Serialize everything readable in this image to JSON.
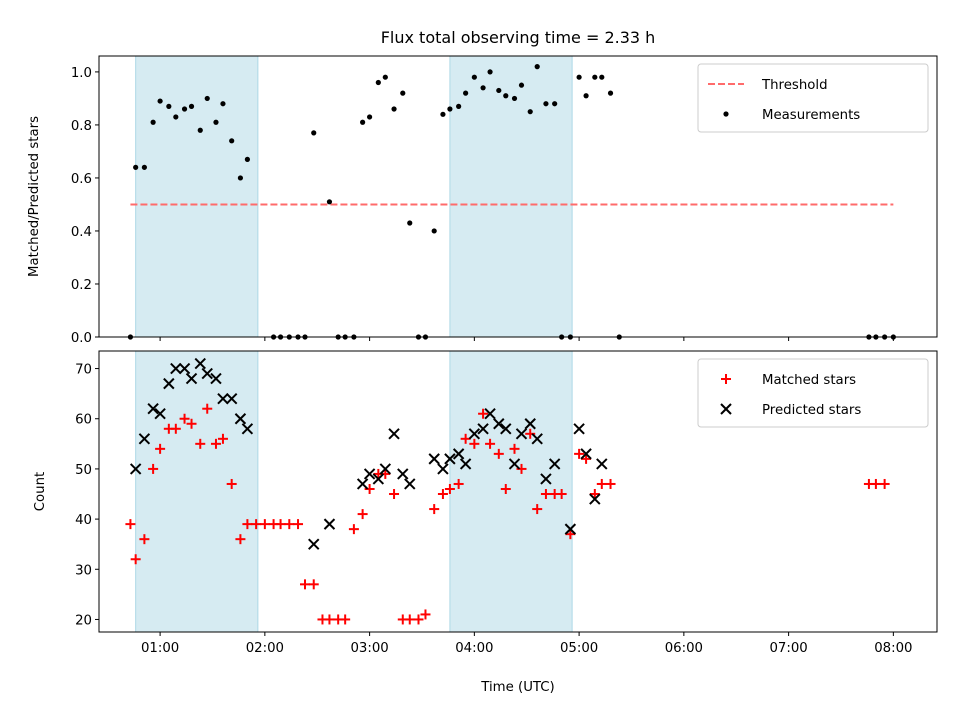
{
  "chart_data": {
    "title": "Flux total observing time = 2.33 h",
    "xlabel": "Time (UTC)",
    "x_type": "time",
    "x_range": [
      "00:25",
      "08:25"
    ],
    "x_ticks": [
      "01:00",
      "02:00",
      "03:00",
      "04:00",
      "05:00",
      "06:00",
      "07:00",
      "08:00"
    ],
    "shaded_intervals": [
      [
        "00:46",
        "01:56"
      ],
      [
        "03:46",
        "04:56"
      ]
    ],
    "shade_color": "#add8e6",
    "panels": [
      {
        "type": "scatter",
        "ylabel": "Matched/Predicted stars",
        "ylim": [
          0,
          1.06
        ],
        "yticks": [
          "0.0",
          "0.2",
          "0.4",
          "0.6",
          "0.8",
          "1.0"
        ],
        "legend_position": "top-right",
        "threshold": {
          "name": "Threshold",
          "value": 0.5,
          "x_start": "00:43",
          "x_end": "08:00",
          "color": "#ff6b6b",
          "style": "dashed"
        },
        "series": [
          {
            "name": "Measurements",
            "color": "#000000",
            "marker": "dot",
            "points": [
              [
                "00:43",
                0.0
              ],
              [
                "00:46",
                0.64
              ],
              [
                "00:51",
                0.64
              ],
              [
                "00:56",
                0.81
              ],
              [
                "01:00",
                0.89
              ],
              [
                "01:05",
                0.87
              ],
              [
                "01:09",
                0.83
              ],
              [
                "01:14",
                0.86
              ],
              [
                "01:18",
                0.87
              ],
              [
                "01:23",
                0.78
              ],
              [
                "01:27",
                0.9
              ],
              [
                "01:32",
                0.81
              ],
              [
                "01:36",
                0.88
              ],
              [
                "01:41",
                0.74
              ],
              [
                "01:46",
                0.6
              ],
              [
                "01:50",
                0.67
              ],
              [
                "02:05",
                0.0
              ],
              [
                "02:09",
                0.0
              ],
              [
                "02:14",
                0.0
              ],
              [
                "02:19",
                0.0
              ],
              [
                "02:23",
                0.0
              ],
              [
                "02:28",
                0.77
              ],
              [
                "02:37",
                0.51
              ],
              [
                "02:42",
                0.0
              ],
              [
                "02:46",
                0.0
              ],
              [
                "02:51",
                0.0
              ],
              [
                "02:56",
                0.81
              ],
              [
                "03:00",
                0.83
              ],
              [
                "03:05",
                0.96
              ],
              [
                "03:09",
                0.98
              ],
              [
                "03:14",
                0.86
              ],
              [
                "03:19",
                0.92
              ],
              [
                "03:23",
                0.43
              ],
              [
                "03:28",
                0.0
              ],
              [
                "03:32",
                0.0
              ],
              [
                "03:37",
                0.4
              ],
              [
                "03:42",
                0.84
              ],
              [
                "03:46",
                0.86
              ],
              [
                "03:51",
                0.87
              ],
              [
                "03:55",
                0.92
              ],
              [
                "04:00",
                0.98
              ],
              [
                "04:05",
                0.94
              ],
              [
                "04:09",
                1.0
              ],
              [
                "04:14",
                0.93
              ],
              [
                "04:18",
                0.91
              ],
              [
                "04:23",
                0.9
              ],
              [
                "04:27",
                0.95
              ],
              [
                "04:32",
                0.85
              ],
              [
                "04:36",
                1.02
              ],
              [
                "04:41",
                0.88
              ],
              [
                "04:46",
                0.88
              ],
              [
                "04:50",
                0.0
              ],
              [
                "04:55",
                0.0
              ],
              [
                "05:00",
                0.98
              ],
              [
                "05:04",
                0.91
              ],
              [
                "05:09",
                0.98
              ],
              [
                "05:13",
                0.98
              ],
              [
                "05:18",
                0.92
              ],
              [
                "05:23",
                0.0
              ],
              [
                "07:46",
                0.0
              ],
              [
                "07:50",
                0.0
              ],
              [
                "07:55",
                0.0
              ],
              [
                "08:00",
                0.0
              ]
            ]
          }
        ]
      },
      {
        "type": "scatter",
        "ylabel": "Count",
        "ylim": [
          17.5,
          73.5
        ],
        "yticks": [
          "20",
          "30",
          "40",
          "50",
          "60",
          "70"
        ],
        "legend_position": "top-right",
        "series": [
          {
            "name": "Matched stars",
            "color": "#ff0000",
            "marker": "plus",
            "points": [
              [
                "00:43",
                39
              ],
              [
                "00:46",
                32
              ],
              [
                "00:51",
                36
              ],
              [
                "00:56",
                50
              ],
              [
                "01:00",
                54
              ],
              [
                "01:05",
                58
              ],
              [
                "01:09",
                58
              ],
              [
                "01:14",
                60
              ],
              [
                "01:18",
                59
              ],
              [
                "01:23",
                55
              ],
              [
                "01:27",
                62
              ],
              [
                "01:32",
                55
              ],
              [
                "01:36",
                56
              ],
              [
                "01:41",
                47
              ],
              [
                "01:46",
                36
              ],
              [
                "01:50",
                39
              ],
              [
                "01:55",
                39
              ],
              [
                "02:00",
                39
              ],
              [
                "02:05",
                39
              ],
              [
                "02:09",
                39
              ],
              [
                "02:14",
                39
              ],
              [
                "02:19",
                39
              ],
              [
                "02:23",
                27
              ],
              [
                "02:28",
                27
              ],
              [
                "02:33",
                20
              ],
              [
                "02:37",
                20
              ],
              [
                "02:42",
                20
              ],
              [
                "02:46",
                20
              ],
              [
                "02:51",
                38
              ],
              [
                "02:56",
                41
              ],
              [
                "03:00",
                46
              ],
              [
                "03:05",
                49
              ],
              [
                "03:09",
                49
              ],
              [
                "03:14",
                45
              ],
              [
                "03:19",
                20
              ],
              [
                "03:23",
                20
              ],
              [
                "03:28",
                20
              ],
              [
                "03:32",
                21
              ],
              [
                "03:37",
                42
              ],
              [
                "03:42",
                45
              ],
              [
                "03:46",
                46
              ],
              [
                "03:51",
                47
              ],
              [
                "03:55",
                56
              ],
              [
                "04:00",
                55
              ],
              [
                "04:05",
                61
              ],
              [
                "04:09",
                55
              ],
              [
                "04:14",
                53
              ],
              [
                "04:18",
                46
              ],
              [
                "04:23",
                54
              ],
              [
                "04:27",
                50
              ],
              [
                "04:32",
                57
              ],
              [
                "04:36",
                42
              ],
              [
                "04:41",
                45
              ],
              [
                "04:46",
                45
              ],
              [
                "04:50",
                45
              ],
              [
                "04:55",
                37
              ],
              [
                "05:00",
                53
              ],
              [
                "05:04",
                52
              ],
              [
                "05:09",
                45
              ],
              [
                "05:13",
                47
              ],
              [
                "05:18",
                47
              ],
              [
                "07:46",
                47
              ],
              [
                "07:50",
                47
              ],
              [
                "07:55",
                47
              ]
            ]
          },
          {
            "name": "Predicted stars",
            "color": "#000000",
            "marker": "x",
            "points": [
              [
                "00:46",
                50
              ],
              [
                "00:51",
                56
              ],
              [
                "00:56",
                62
              ],
              [
                "01:00",
                61
              ],
              [
                "01:05",
                67
              ],
              [
                "01:09",
                70
              ],
              [
                "01:14",
                70
              ],
              [
                "01:18",
                68
              ],
              [
                "01:23",
                71
              ],
              [
                "01:27",
                69
              ],
              [
                "01:32",
                68
              ],
              [
                "01:36",
                64
              ],
              [
                "01:41",
                64
              ],
              [
                "01:46",
                60
              ],
              [
                "01:50",
                58
              ],
              [
                "02:28",
                35
              ],
              [
                "02:37",
                39
              ],
              [
                "02:56",
                47
              ],
              [
                "03:00",
                49
              ],
              [
                "03:05",
                48
              ],
              [
                "03:09",
                50
              ],
              [
                "03:14",
                57
              ],
              [
                "03:19",
                49
              ],
              [
                "03:23",
                47
              ],
              [
                "03:37",
                52
              ],
              [
                "03:42",
                50
              ],
              [
                "03:46",
                52
              ],
              [
                "03:51",
                53
              ],
              [
                "03:55",
                51
              ],
              [
                "04:00",
                57
              ],
              [
                "04:05",
                58
              ],
              [
                "04:09",
                61
              ],
              [
                "04:14",
                59
              ],
              [
                "04:18",
                58
              ],
              [
                "04:23",
                51
              ],
              [
                "04:27",
                57
              ],
              [
                "04:32",
                59
              ],
              [
                "04:36",
                56
              ],
              [
                "04:41",
                48
              ],
              [
                "04:46",
                51
              ],
              [
                "04:55",
                38
              ],
              [
                "05:00",
                58
              ],
              [
                "05:04",
                53
              ],
              [
                "05:09",
                44
              ],
              [
                "05:13",
                51
              ]
            ]
          }
        ]
      }
    ]
  }
}
